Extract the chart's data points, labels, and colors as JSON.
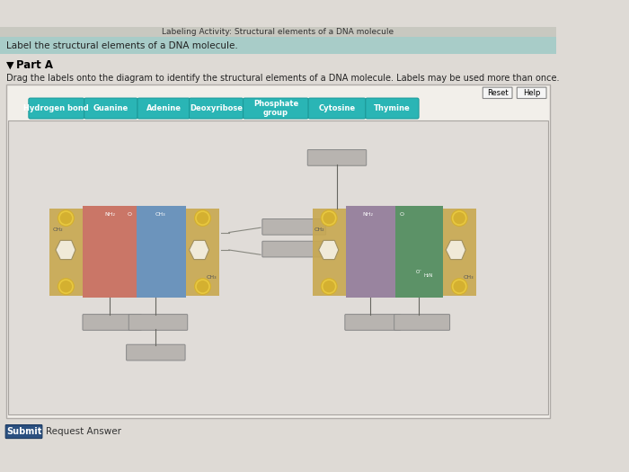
{
  "title_top": "Labeling Activity: Structural elements of a DNA molecule",
  "subtitle": "Label the structural elements of a DNA molecule.",
  "part_label": "Part A",
  "instruction": "Drag the labels onto the diagram to identify the structural elements of a DNA molecule. Labels may be used more than once.",
  "label_buttons": [
    "Hydrogen bond",
    "Guanine",
    "Adenine",
    "Deoxyribose",
    "Phosphate\ngroup",
    "Cytosine",
    "Thymine"
  ],
  "button_color": "#2ab5b5",
  "button_text_color": "white",
  "bg_top_color": "#b8d8d8",
  "bg_main_color": "#dedad5",
  "outer_bg": "#f0eded",
  "inner_bg": "#e8e4df",
  "reset_btn": "Reset",
  "help_btn": "Help",
  "submit_btn": "Submit",
  "request_btn": "Request Answer",
  "submit_bg": "#2b5080",
  "empty_box_color": "#b8b4b0",
  "gold_bg": "#c8a850",
  "circle_fill": "#d4b030",
  "circle_edge": "#e8c840",
  "guanine_color": "#c86858",
  "adenine_color": "#5888b8",
  "cytosine_color": "#907898",
  "thymine_color": "#4a8858",
  "small_circle_color": "#e0d8c0",
  "connector_color": "#888880"
}
